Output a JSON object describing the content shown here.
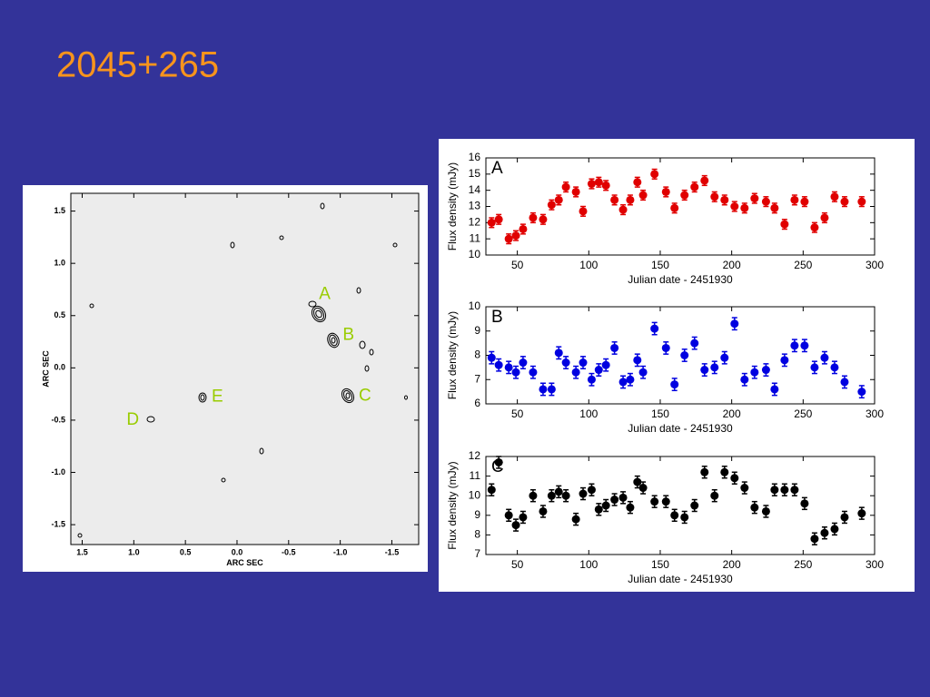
{
  "title": "2045+265",
  "chart_data": [
    {
      "type": "contour",
      "xlabel": "ARC SEC",
      "ylabel": "ARC SEC",
      "xlim": [
        1.61,
        -1.76
      ],
      "ylim": [
        -1.69,
        1.67
      ],
      "xticks": [
        1.5,
        {
          "value": 1,
          "label": "1.0"
        },
        0.5,
        {
          "value": 0,
          "label": "0.0"
        },
        -0.5,
        {
          "value": -1,
          "label": "-1.0"
        },
        -1.5
      ],
      "yticks": [
        1.5,
        {
          "value": 1,
          "label": "1.0"
        },
        0.5,
        {
          "value": 0,
          "label": "0.0"
        },
        -0.5,
        {
          "value": -1,
          "label": "-1.0"
        },
        -1.5
      ],
      "annotations": [
        {
          "text": "A",
          "x": -0.85,
          "y": 0.7
        },
        {
          "text": "B",
          "x": -1.08,
          "y": 0.31
        },
        {
          "text": "C",
          "x": -1.24,
          "y": -0.27
        },
        {
          "text": "E",
          "x": 0.19,
          "y": -0.28
        },
        {
          "text": "D",
          "x": 1.01,
          "y": -0.5
        }
      ],
      "color": "#99cc00"
    },
    {
      "type": "scatter",
      "title": "A",
      "xlabel": "Julian date - 2451930",
      "ylabel": "Flux density (mJy)",
      "color": "#e00000",
      "xlim": [
        28,
        300
      ],
      "ylim": [
        10,
        16
      ],
      "xticks": [
        50,
        100,
        150,
        200,
        250,
        300
      ],
      "yticks": [
        10,
        11,
        12,
        13,
        14,
        15,
        16
      ],
      "yerr": 0.3,
      "x": [
        32,
        37,
        44,
        49,
        54,
        61,
        68,
        74,
        79,
        84,
        91,
        96,
        102,
        107,
        112,
        118,
        124,
        129,
        134,
        138,
        146,
        154,
        160,
        167,
        174,
        181,
        188,
        195,
        202,
        209,
        216,
        224,
        230,
        237,
        244,
        251,
        258,
        265,
        272,
        279,
        291
      ],
      "values": [
        12.0,
        12.2,
        11.0,
        11.2,
        11.6,
        12.3,
        12.2,
        13.1,
        13.4,
        14.2,
        13.9,
        12.7,
        14.4,
        14.5,
        14.3,
        13.4,
        12.8,
        13.4,
        14.5,
        13.7,
        15.0,
        13.9,
        12.9,
        13.7,
        14.2,
        14.6,
        13.6,
        13.4,
        13.0,
        12.9,
        13.5,
        13.3,
        12.9,
        11.9,
        13.4,
        13.3,
        11.7,
        12.3,
        13.6,
        13.3,
        13.3
      ]
    },
    {
      "type": "scatter",
      "title": "B",
      "xlabel": "Julian date - 2451930",
      "ylabel": "Flux density (mJy)",
      "color": "#0000e0",
      "xlim": [
        28,
        300
      ],
      "ylim": [
        6,
        10
      ],
      "xticks": [
        50,
        100,
        150,
        200,
        250,
        300
      ],
      "yticks": [
        6,
        7,
        8,
        9,
        10
      ],
      "yerr": 0.25,
      "x": [
        32,
        37,
        44,
        49,
        54,
        61,
        68,
        74,
        79,
        84,
        91,
        96,
        102,
        107,
        112,
        118,
        124,
        129,
        134,
        138,
        146,
        154,
        160,
        167,
        174,
        181,
        188,
        195,
        202,
        209,
        216,
        224,
        230,
        237,
        244,
        251,
        258,
        265,
        272,
        279,
        291
      ],
      "values": [
        7.9,
        7.6,
        7.5,
        7.3,
        7.7,
        7.3,
        6.6,
        6.6,
        8.1,
        7.7,
        7.3,
        7.7,
        7.0,
        7.4,
        7.6,
        8.3,
        6.9,
        7.0,
        7.8,
        7.3,
        9.1,
        8.3,
        6.8,
        8.0,
        8.5,
        7.4,
        7.5,
        7.9,
        9.3,
        7.0,
        7.3,
        7.4,
        6.6,
        7.8,
        8.4,
        8.4,
        7.5,
        7.9,
        7.5,
        6.9,
        6.5
      ]
    },
    {
      "type": "scatter",
      "title": "C",
      "xlabel": "Julian date - 2451930",
      "ylabel": "Flux density (mJy)",
      "color": "#000000",
      "xlim": [
        28,
        300
      ],
      "ylim": [
        7,
        12
      ],
      "xticks": [
        50,
        100,
        150,
        200,
        250,
        300
      ],
      "yticks": [
        7,
        8,
        9,
        10,
        11,
        12
      ],
      "yerr": 0.3,
      "x": [
        32,
        37,
        44,
        49,
        54,
        61,
        68,
        74,
        79,
        84,
        91,
        96,
        102,
        107,
        112,
        118,
        124,
        129,
        134,
        138,
        146,
        154,
        160,
        167,
        174,
        181,
        188,
        195,
        202,
        209,
        216,
        224,
        230,
        237,
        244,
        251,
        258,
        265,
        272,
        279,
        291
      ],
      "values": [
        10.3,
        11.7,
        9.0,
        8.5,
        8.9,
        10.0,
        9.2,
        10.0,
        10.2,
        10.0,
        8.8,
        10.1,
        10.3,
        9.3,
        9.5,
        9.8,
        9.9,
        9.4,
        10.7,
        10.4,
        9.7,
        9.7,
        9.0,
        8.9,
        9.5,
        11.2,
        10.0,
        11.2,
        10.9,
        10.4,
        9.4,
        9.2,
        10.3,
        10.3,
        10.3,
        9.6,
        7.8,
        8.1,
        8.3,
        8.9,
        9.1
      ]
    }
  ]
}
